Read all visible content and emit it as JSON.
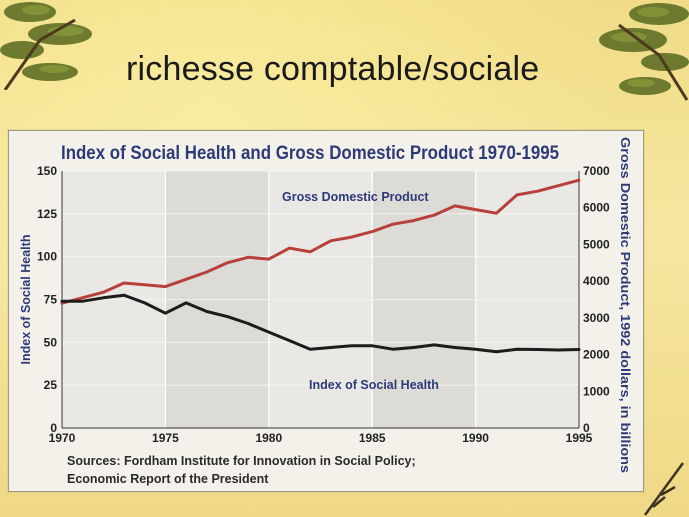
{
  "slide": {
    "title": "richesse comptable/sociale"
  },
  "chart_data": {
    "type": "line",
    "title": "Index of Social Health and Gross Domestic Product 1970-1995",
    "xlabel": "",
    "ylabel_left": "Index of Social Health",
    "ylabel_right": "Gross Domestic Product, 1992 dollars, in billions",
    "x_ticks": [
      "1970",
      "1975",
      "1980",
      "1985",
      "1990",
      "1995"
    ],
    "y_left_ticks": [
      "0",
      "25",
      "50",
      "75",
      "100",
      "125",
      "150"
    ],
    "y_right_ticks": [
      "0",
      "1000",
      "2000",
      "3000",
      "4000",
      "5000",
      "6000",
      "7000"
    ],
    "ylim_left": [
      0,
      150
    ],
    "ylim_right": [
      0,
      7000
    ],
    "xlim": [
      1970,
      1995
    ],
    "series": [
      {
        "name": "Gross Domestic Product",
        "axis": "right",
        "color": "#b8403a",
        "x": [
          1970,
          1971,
          1972,
          1973,
          1974,
          1975,
          1976,
          1977,
          1978,
          1979,
          1980,
          1981,
          1982,
          1983,
          1984,
          1985,
          1986,
          1987,
          1988,
          1989,
          1990,
          1991,
          1992,
          1993,
          1994,
          1995
        ],
        "values": [
          3400,
          3550,
          3700,
          3950,
          3900,
          3850,
          4050,
          4250,
          4500,
          4650,
          4600,
          4900,
          4800,
          5100,
          5200,
          5350,
          5550,
          5650,
          5800,
          6050,
          5950,
          5850,
          6350,
          6450,
          6600,
          6750
        ]
      },
      {
        "name": "Index of Social Health",
        "axis": "left",
        "color": "#1c1c1c",
        "x": [
          1970,
          1971,
          1972,
          1973,
          1974,
          1975,
          1976,
          1977,
          1978,
          1979,
          1980,
          1981,
          1982,
          1983,
          1984,
          1985,
          1986,
          1987,
          1988,
          1989,
          1990,
          1991,
          1992,
          1993,
          1994,
          1995
        ],
        "values": [
          74,
          74,
          76,
          77.5,
          73,
          67,
          73,
          68,
          65,
          61,
          56,
          51,
          46,
          47,
          48,
          48,
          46,
          47,
          48.5,
          47,
          46,
          44.5,
          46,
          45.8,
          45.5,
          45.8
        ]
      }
    ],
    "grid": true,
    "annotations": [
      "Gross Domestic Product",
      "Index of Social Health"
    ],
    "source": {
      "line1": "Sources: Fordham Institute for Innovation in Social Policy;",
      "line2": "Economic Report of the President"
    }
  }
}
